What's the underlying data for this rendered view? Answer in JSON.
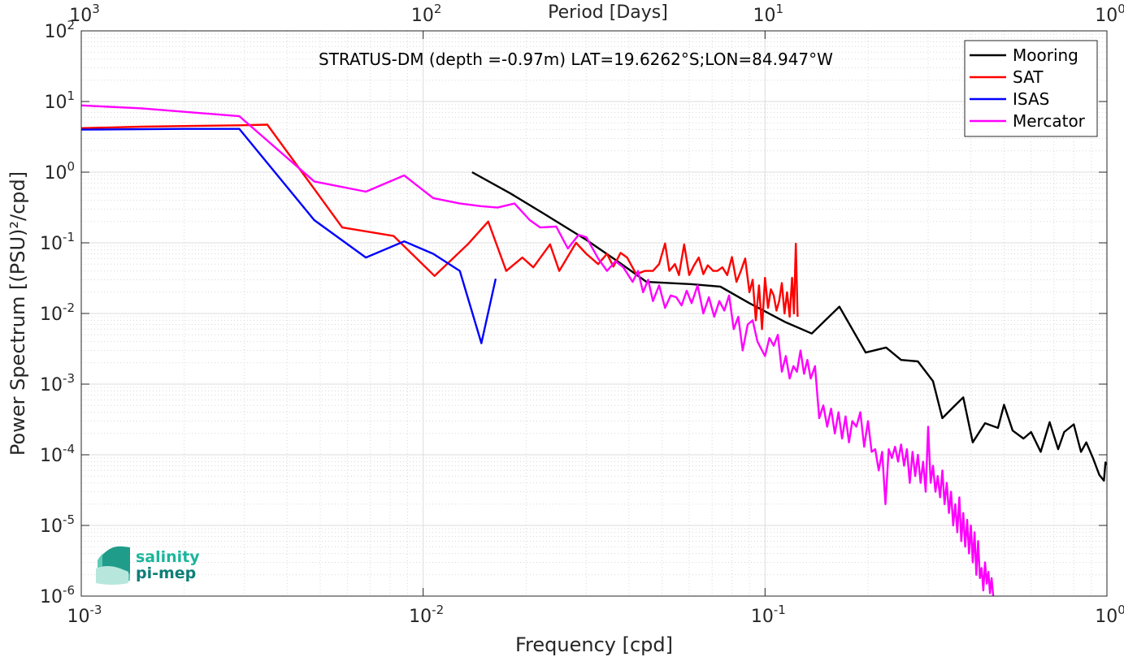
{
  "chart_data": {
    "type": "line",
    "title": "",
    "annotation": "STRATUS-DM (depth =-0.97m) LAT=19.6262°S;LON=84.947°W",
    "xlabel": "Frequency [cpd]",
    "ylabel": "Power Spectrum [(PSU)²/cpd]",
    "x2label": "Period [Days]",
    "xscale": "log",
    "yscale": "log",
    "xlim": [
      0.001,
      1
    ],
    "ylim": [
      1e-06,
      100
    ],
    "grid": true,
    "legend_position": "top-right",
    "xticks": [
      {
        "base": "10",
        "exp": "-3",
        "value": 0.001
      },
      {
        "base": "10",
        "exp": "-2",
        "value": 0.01
      },
      {
        "base": "10",
        "exp": "-1",
        "value": 0.1
      },
      {
        "base": "10",
        "exp": "0",
        "value": 1
      }
    ],
    "x2ticks": [
      {
        "base": "10",
        "exp": "3",
        "value": 0.001
      },
      {
        "base": "10",
        "exp": "2",
        "value": 0.01
      },
      {
        "base": "10",
        "exp": "1",
        "value": 0.1
      },
      {
        "base": "10",
        "exp": "0",
        "value": 1
      }
    ],
    "yticks": [
      {
        "base": "10",
        "exp": "-6",
        "value": 1e-06
      },
      {
        "base": "10",
        "exp": "-5",
        "value": 1e-05
      },
      {
        "base": "10",
        "exp": "-4",
        "value": 0.0001
      },
      {
        "base": "10",
        "exp": "-3",
        "value": 0.001
      },
      {
        "base": "10",
        "exp": "-2",
        "value": 0.01
      },
      {
        "base": "10",
        "exp": "-1",
        "value": 0.1
      },
      {
        "base": "10",
        "exp": "0",
        "value": 1
      },
      {
        "base": "10",
        "exp": "1",
        "value": 10
      },
      {
        "base": "10",
        "exp": "2",
        "value": 100
      }
    ],
    "series": [
      {
        "name": "Mooring",
        "color": "#000000",
        "points": [
          [
            0.0139,
            1.0
          ],
          [
            0.018,
            0.5
          ],
          [
            0.0225,
            0.26
          ],
          [
            0.03,
            0.11
          ],
          [
            0.037,
            0.055
          ],
          [
            0.045,
            0.028
          ],
          [
            0.061,
            0.026
          ],
          [
            0.074,
            0.024
          ],
          [
            0.09,
            0.014
          ],
          [
            0.115,
            0.0075
          ],
          [
            0.137,
            0.0052
          ],
          [
            0.165,
            0.0125
          ],
          [
            0.197,
            0.0028
          ],
          [
            0.226,
            0.0033
          ],
          [
            0.25,
            0.0022
          ],
          [
            0.28,
            0.0021
          ],
          [
            0.31,
            0.0011
          ],
          [
            0.33,
            0.00033
          ],
          [
            0.355,
            0.00047
          ],
          [
            0.38,
            0.00065
          ],
          [
            0.405,
            0.00015
          ],
          [
            0.44,
            0.00028
          ],
          [
            0.48,
            0.00024
          ],
          [
            0.5,
            0.00051
          ],
          [
            0.53,
            0.00022
          ],
          [
            0.57,
            0.00017
          ],
          [
            0.6,
            0.00021
          ],
          [
            0.64,
            0.00011
          ],
          [
            0.68,
            0.00029
          ],
          [
            0.72,
            0.00012
          ],
          [
            0.75,
            0.00021
          ],
          [
            0.8,
            0.00027
          ],
          [
            0.84,
            0.00011
          ],
          [
            0.87,
            0.00015
          ],
          [
            0.91,
            9e-05
          ],
          [
            0.95,
            5.2e-05
          ],
          [
            0.98,
            4.3e-05
          ],
          [
            0.99,
            7.8e-05
          ],
          [
            1.0,
            7.2e-05
          ]
        ]
      },
      {
        "name": "SAT",
        "color": "#ff0000",
        "points": [
          [
            0.001,
            4.2
          ],
          [
            0.0015,
            4.4
          ],
          [
            0.002,
            4.5
          ],
          [
            0.0029,
            4.6
          ],
          [
            0.0035,
            4.7
          ],
          [
            0.0048,
            0.58
          ],
          [
            0.0058,
            0.165
          ],
          [
            0.0082,
            0.125
          ],
          [
            0.0108,
            0.034
          ],
          [
            0.0135,
            0.095
          ],
          [
            0.0155,
            0.2
          ],
          [
            0.0175,
            0.04
          ],
          [
            0.0195,
            0.062
          ],
          [
            0.021,
            0.045
          ],
          [
            0.0235,
            0.095
          ],
          [
            0.025,
            0.04
          ],
          [
            0.028,
            0.1
          ],
          [
            0.03,
            0.07
          ],
          [
            0.0325,
            0.05
          ],
          [
            0.0345,
            0.07
          ],
          [
            0.036,
            0.046
          ],
          [
            0.0378,
            0.072
          ],
          [
            0.0395,
            0.062
          ],
          [
            0.042,
            0.036
          ],
          [
            0.0445,
            0.04
          ],
          [
            0.047,
            0.04
          ],
          [
            0.049,
            0.05
          ],
          [
            0.051,
            0.098
          ],
          [
            0.0525,
            0.04
          ],
          [
            0.0545,
            0.05
          ],
          [
            0.056,
            0.035
          ],
          [
            0.058,
            0.095
          ],
          [
            0.06,
            0.035
          ],
          [
            0.062,
            0.048
          ],
          [
            0.064,
            0.062
          ],
          [
            0.066,
            0.036
          ],
          [
            0.068,
            0.048
          ],
          [
            0.0705,
            0.04
          ],
          [
            0.0725,
            0.04
          ],
          [
            0.075,
            0.045
          ],
          [
            0.0775,
            0.035
          ],
          [
            0.08,
            0.063
          ],
          [
            0.0825,
            0.028
          ],
          [
            0.085,
            0.04
          ],
          [
            0.0875,
            0.06
          ],
          [
            0.09,
            0.02
          ],
          [
            0.092,
            0.03
          ],
          [
            0.094,
            0.008
          ],
          [
            0.096,
            0.025
          ],
          [
            0.098,
            0.006
          ],
          [
            0.1,
            0.032
          ],
          [
            0.102,
            0.012
          ],
          [
            0.104,
            0.022
          ],
          [
            0.106,
            0.018
          ],
          [
            0.108,
            0.011
          ],
          [
            0.11,
            0.015
          ],
          [
            0.112,
            0.027
          ],
          [
            0.114,
            0.01
          ],
          [
            0.116,
            0.02
          ],
          [
            0.118,
            0.009
          ],
          [
            0.12,
            0.032
          ],
          [
            0.1215,
            0.01
          ],
          [
            0.123,
            0.097
          ],
          [
            0.1245,
            0.009
          ]
        ]
      },
      {
        "name": "ISAS",
        "color": "#0000ff",
        "points": [
          [
            0.001,
            4.0
          ],
          [
            0.002,
            4.1
          ],
          [
            0.0029,
            4.1
          ],
          [
            0.0048,
            0.21
          ],
          [
            0.0068,
            0.062
          ],
          [
            0.0088,
            0.105
          ],
          [
            0.0107,
            0.07
          ],
          [
            0.0128,
            0.04
          ],
          [
            0.0148,
            0.0038
          ],
          [
            0.0163,
            0.031
          ]
        ]
      },
      {
        "name": "Mercator",
        "color": "#ff00ff",
        "points": [
          [
            0.001,
            8.8
          ],
          [
            0.0015,
            8.0
          ],
          [
            0.0029,
            6.2
          ],
          [
            0.0048,
            0.74
          ],
          [
            0.0068,
            0.53
          ],
          [
            0.0088,
            0.9
          ],
          [
            0.0107,
            0.43
          ],
          [
            0.0128,
            0.36
          ],
          [
            0.0148,
            0.33
          ],
          [
            0.0165,
            0.315
          ],
          [
            0.0185,
            0.36
          ],
          [
            0.0205,
            0.21
          ],
          [
            0.022,
            0.165
          ],
          [
            0.0245,
            0.17
          ],
          [
            0.0265,
            0.083
          ],
          [
            0.0285,
            0.13
          ],
          [
            0.03,
            0.12
          ],
          [
            0.0325,
            0.06
          ],
          [
            0.0345,
            0.04
          ],
          [
            0.0365,
            0.055
          ],
          [
            0.0385,
            0.045
          ],
          [
            0.041,
            0.028
          ],
          [
            0.0425,
            0.04
          ],
          [
            0.044,
            0.02
          ],
          [
            0.0455,
            0.03
          ],
          [
            0.047,
            0.015
          ],
          [
            0.049,
            0.025
          ],
          [
            0.051,
            0.012
          ],
          [
            0.053,
            0.018
          ],
          [
            0.055,
            0.017
          ],
          [
            0.057,
            0.013
          ],
          [
            0.059,
            0.021
          ],
          [
            0.061,
            0.014
          ],
          [
            0.0635,
            0.025
          ],
          [
            0.066,
            0.01
          ],
          [
            0.0685,
            0.017
          ],
          [
            0.071,
            0.009
          ],
          [
            0.0735,
            0.015
          ],
          [
            0.076,
            0.011
          ],
          [
            0.0785,
            0.018
          ],
          [
            0.081,
            0.006
          ],
          [
            0.0835,
            0.009
          ],
          [
            0.086,
            0.003
          ],
          [
            0.089,
            0.007
          ],
          [
            0.092,
            0.008
          ],
          [
            0.095,
            0.004
          ],
          [
            0.098,
            0.003
          ],
          [
            0.1,
            0.0025
          ],
          [
            0.103,
            0.0045
          ],
          [
            0.106,
            0.0035
          ],
          [
            0.109,
            0.005
          ],
          [
            0.112,
            0.0015
          ],
          [
            0.115,
            0.0025
          ],
          [
            0.118,
            0.0012
          ],
          [
            0.121,
            0.0018
          ],
          [
            0.124,
            0.0015
          ],
          [
            0.127,
            0.003
          ],
          [
            0.13,
            0.0014
          ],
          [
            0.133,
            0.0022
          ],
          [
            0.136,
            0.0012
          ],
          [
            0.14,
            0.0018
          ],
          [
            0.144,
            0.00033
          ],
          [
            0.148,
            0.0005
          ],
          [
            0.152,
            0.00025
          ],
          [
            0.156,
            0.00045
          ],
          [
            0.16,
            0.0002
          ],
          [
            0.164,
            0.0004
          ],
          [
            0.168,
            0.00017
          ],
          [
            0.172,
            0.00035
          ],
          [
            0.176,
            0.00015
          ],
          [
            0.18,
            0.0003
          ],
          [
            0.185,
            0.00025
          ],
          [
            0.19,
            0.0004
          ],
          [
            0.195,
            0.00013
          ],
          [
            0.2,
            0.0003
          ],
          [
            0.205,
            0.00011
          ],
          [
            0.21,
            0.00012
          ],
          [
            0.215,
            6e-05
          ],
          [
            0.22,
            0.00011
          ],
          [
            0.225,
            2e-05
          ],
          [
            0.23,
            0.00012
          ],
          [
            0.235,
            9e-05
          ],
          [
            0.24,
            0.00013
          ],
          [
            0.245,
            8e-05
          ],
          [
            0.25,
            0.00014
          ],
          [
            0.255,
            7e-05
          ],
          [
            0.26,
            0.00012
          ],
          [
            0.265,
            4e-05
          ],
          [
            0.27,
            0.00011
          ],
          [
            0.275,
            5e-05
          ],
          [
            0.28,
            0.0001
          ],
          [
            0.285,
            4e-05
          ],
          [
            0.29,
            8e-05
          ],
          [
            0.295,
            3e-05
          ],
          [
            0.3,
            0.00025
          ],
          [
            0.305,
            4e-05
          ],
          [
            0.31,
            7e-05
          ],
          [
            0.315,
            3e-05
          ],
          [
            0.32,
            5e-05
          ],
          [
            0.325,
            2.5e-05
          ],
          [
            0.33,
            6e-05
          ],
          [
            0.335,
            2e-05
          ],
          [
            0.34,
            4e-05
          ],
          [
            0.345,
            1.5e-05
          ],
          [
            0.35,
            3e-05
          ],
          [
            0.355,
            1e-05
          ],
          [
            0.36,
            2e-05
          ],
          [
            0.365,
            8e-06
          ],
          [
            0.37,
            2.5e-05
          ],
          [
            0.375,
            6e-06
          ],
          [
            0.38,
            1.5e-05
          ],
          [
            0.385,
            5e-06
          ],
          [
            0.39,
            1.2e-05
          ],
          [
            0.395,
            4e-06
          ],
          [
            0.4,
            1e-05
          ],
          [
            0.405,
            3e-06
          ],
          [
            0.41,
            8e-06
          ],
          [
            0.415,
            2e-06
          ],
          [
            0.42,
            6e-06
          ],
          [
            0.425,
            1.8e-06
          ],
          [
            0.43,
            2.5e-06
          ],
          [
            0.435,
            1.2e-06
          ],
          [
            0.44,
            3e-06
          ],
          [
            0.445,
            1.5e-06
          ],
          [
            0.45,
            2.2e-06
          ],
          [
            0.455,
            1.1e-06
          ],
          [
            0.46,
            1.8e-06
          ],
          [
            0.465,
            1e-06
          ]
        ]
      }
    ]
  },
  "logo": {
    "line1": "salinity",
    "line2": "pi-mep"
  }
}
